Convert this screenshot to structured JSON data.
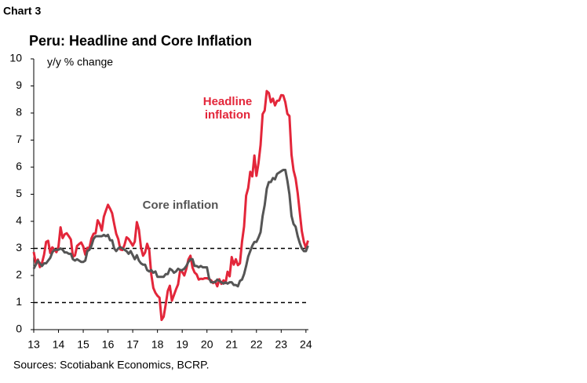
{
  "chart_label": "Chart 3",
  "chart_data": {
    "type": "line",
    "title": "Peru: Headline and Core Inflation",
    "y_label": "y/y % change",
    "source": "Sources: Scotiabank Economics, BCRP.",
    "x": [
      13,
      13.083,
      13.167,
      13.25,
      13.333,
      13.417,
      13.5,
      13.583,
      13.667,
      13.75,
      13.833,
      13.917,
      14,
      14.083,
      14.167,
      14.25,
      14.333,
      14.417,
      14.5,
      14.583,
      14.667,
      14.75,
      14.833,
      14.917,
      15,
      15.083,
      15.167,
      15.25,
      15.333,
      15.417,
      15.5,
      15.583,
      15.667,
      15.75,
      15.833,
      15.917,
      16,
      16.083,
      16.167,
      16.25,
      16.333,
      16.417,
      16.5,
      16.583,
      16.667,
      16.75,
      16.833,
      16.917,
      17,
      17.083,
      17.167,
      17.25,
      17.333,
      17.417,
      17.5,
      17.583,
      17.667,
      17.75,
      17.833,
      17.917,
      18,
      18.083,
      18.167,
      18.25,
      18.333,
      18.417,
      18.5,
      18.583,
      18.667,
      18.75,
      18.833,
      18.917,
      19,
      19.083,
      19.167,
      19.25,
      19.333,
      19.417,
      19.5,
      19.583,
      19.667,
      19.75,
      19.833,
      19.917,
      20,
      20.083,
      20.167,
      20.25,
      20.333,
      20.417,
      20.5,
      20.583,
      20.667,
      20.75,
      20.833,
      20.917,
      21,
      21.083,
      21.167,
      21.25,
      21.333,
      21.417,
      21.5,
      21.583,
      21.667,
      21.75,
      21.833,
      21.917,
      22,
      22.083,
      22.167,
      22.25,
      22.333,
      22.417,
      22.5,
      22.583,
      22.667,
      22.75,
      22.833,
      22.917,
      23,
      23.083,
      23.167,
      23.25,
      23.333,
      23.417,
      23.5,
      23.583,
      23.667,
      23.75,
      23.833,
      23.917,
      24,
      24.083
    ],
    "series": [
      {
        "name": "Headline inflation",
        "color": "#e3263a",
        "values": [
          2.87,
          2.45,
          2.59,
          2.31,
          2.46,
          2.77,
          3.24,
          3.28,
          2.83,
          3.04,
          2.96,
          2.86,
          3.07,
          3.78,
          3.38,
          3.52,
          3.56,
          3.45,
          3.33,
          2.69,
          2.74,
          3.09,
          3.16,
          3.22,
          3.07,
          2.77,
          3.02,
          3.02,
          3.37,
          3.54,
          3.56,
          4.04,
          3.9,
          3.66,
          4.17,
          4.4,
          4.61,
          4.47,
          4.3,
          3.91,
          3.54,
          3.34,
          2.96,
          2.94,
          3.13,
          3.41,
          3.35,
          3.23,
          3.1,
          3.25,
          3.97,
          3.69,
          3.04,
          2.73,
          2.85,
          3.17,
          2.94,
          2.04,
          1.54,
          1.36,
          1.25,
          1.18,
          0.36,
          0.48,
          0.93,
          1.43,
          1.62,
          1.07,
          1.28,
          1.49,
          1.67,
          2.19,
          2.13,
          2.0,
          2.25,
          2.59,
          2.73,
          2.29,
          2.11,
          2.04,
          1.85,
          1.88,
          1.87,
          1.9,
          1.9,
          1.87,
          1.82,
          1.72,
          1.78,
          1.6,
          1.86,
          1.69,
          1.82,
          1.72,
          2.14,
          1.97,
          2.68,
          2.4,
          2.6,
          2.38,
          2.45,
          3.25,
          3.81,
          4.95,
          5.23,
          5.83,
          5.66,
          6.43,
          5.68,
          6.15,
          6.82,
          7.96,
          8.09,
          8.81,
          8.74,
          8.4,
          8.53,
          8.28,
          8.45,
          8.46,
          8.66,
          8.65,
          8.4,
          7.97,
          7.89,
          6.46,
          5.88,
          5.58,
          5.04,
          4.34,
          3.64,
          3.24,
          3.02,
          3.29
        ]
      },
      {
        "name": "Core inflation",
        "color": "#555555",
        "values": [
          2.25,
          2.4,
          2.55,
          2.45,
          2.35,
          2.45,
          2.45,
          2.55,
          2.65,
          2.85,
          2.95,
          2.95,
          2.95,
          3.0,
          2.95,
          2.85,
          2.85,
          2.8,
          2.8,
          2.6,
          2.55,
          2.6,
          2.55,
          2.5,
          2.5,
          2.55,
          2.9,
          2.95,
          3.1,
          3.35,
          3.45,
          3.45,
          3.45,
          3.45,
          3.5,
          3.45,
          3.5,
          3.3,
          3.3,
          3.0,
          2.9,
          3.0,
          3.05,
          3.0,
          2.95,
          2.9,
          2.8,
          2.9,
          2.75,
          2.6,
          2.75,
          2.55,
          2.45,
          2.4,
          2.4,
          2.2,
          2.15,
          2.2,
          2.1,
          2.15,
          1.95,
          1.95,
          1.95,
          1.95,
          2.05,
          2.05,
          2.25,
          2.2,
          2.1,
          2.15,
          2.25,
          2.2,
          2.2,
          2.25,
          2.35,
          2.5,
          2.6,
          2.6,
          2.35,
          2.35,
          2.3,
          2.35,
          2.3,
          2.3,
          2.3,
          1.9,
          1.75,
          1.75,
          1.75,
          1.85,
          1.8,
          1.75,
          1.7,
          1.75,
          1.7,
          1.75,
          1.75,
          1.65,
          1.65,
          1.6,
          1.8,
          1.85,
          2.05,
          2.35,
          2.7,
          2.9,
          3.1,
          3.24,
          3.24,
          3.4,
          3.6,
          4.2,
          4.6,
          5.2,
          5.45,
          5.45,
          5.6,
          5.55,
          5.75,
          5.8,
          5.85,
          5.9,
          5.9,
          5.5,
          5.0,
          4.2,
          3.9,
          3.8,
          3.45,
          3.2,
          3.0,
          2.9,
          2.9,
          3.1
        ]
      }
    ],
    "hlines": [
      1,
      3
    ],
    "xlim": [
      13,
      24.1
    ],
    "xticks": [
      13,
      14,
      15,
      16,
      17,
      18,
      19,
      20,
      21,
      22,
      23,
      24
    ],
    "ylim": [
      0,
      10
    ],
    "yticks": [
      0,
      1,
      2,
      3,
      4,
      5,
      6,
      7,
      8,
      9,
      10
    ]
  }
}
